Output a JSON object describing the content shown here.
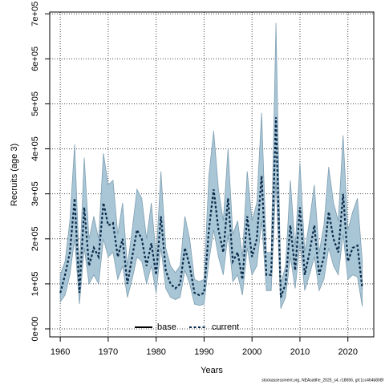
{
  "chart_data": {
    "type": "line_band",
    "xlabel": "Years",
    "ylabel": "Recruits (age 3)",
    "footer": "stockassessment.org, NEAsalthe_2025_s4, r18656, git:1cc464b808f",
    "x": [
      1960,
      1961,
      1962,
      1963,
      1964,
      1965,
      1966,
      1967,
      1968,
      1969,
      1970,
      1971,
      1972,
      1973,
      1974,
      1975,
      1976,
      1977,
      1978,
      1979,
      1980,
      1981,
      1982,
      1983,
      1984,
      1985,
      1986,
      1987,
      1988,
      1989,
      1990,
      1991,
      1992,
      1993,
      1994,
      1995,
      1996,
      1997,
      1998,
      1999,
      2000,
      2001,
      2002,
      2003,
      2004,
      2005,
      2006,
      2007,
      2008,
      2009,
      2010,
      2011,
      2012,
      2013,
      2014,
      2015,
      2016,
      2017,
      2018,
      2019,
      2020,
      2021,
      2022,
      2023
    ],
    "series": [
      {
        "name": "base",
        "color": "#000000",
        "dash": "solid"
      },
      {
        "name": "current",
        "color": "#0a2a4a",
        "dash": "dotted",
        "band_color": "#a9c6d6",
        "band_stroke": "#7f9fb2",
        "values": [
          80000,
          120000,
          170000,
          290000,
          80000,
          270000,
          140000,
          180000,
          160000,
          280000,
          230000,
          235000,
          160000,
          200000,
          100000,
          160000,
          220000,
          200000,
          140000,
          190000,
          120000,
          250000,
          130000,
          100000,
          90000,
          100000,
          180000,
          140000,
          80000,
          75000,
          80000,
          220000,
          310000,
          220000,
          170000,
          290000,
          150000,
          170000,
          110000,
          250000,
          160000,
          200000,
          340000,
          120000,
          120000,
          470000,
          70000,
          100000,
          230000,
          130000,
          270000,
          120000,
          170000,
          230000,
          120000,
          160000,
          260000,
          200000,
          170000,
          300000,
          150000,
          180000,
          185000,
          90000
        ],
        "lower": [
          60000,
          75000,
          120000,
          200000,
          55000,
          180000,
          100000,
          120000,
          100000,
          200000,
          160000,
          170000,
          110000,
          140000,
          70000,
          110000,
          160000,
          150000,
          100000,
          140000,
          80000,
          180000,
          90000,
          70000,
          65000,
          70000,
          130000,
          100000,
          55000,
          52000,
          55000,
          150000,
          220000,
          160000,
          120000,
          210000,
          105000,
          120000,
          75000,
          180000,
          120000,
          140000,
          240000,
          85000,
          85000,
          330000,
          45000,
          70000,
          160000,
          90000,
          190000,
          85000,
          120000,
          160000,
          85000,
          110000,
          180000,
          140000,
          120000,
          210000,
          110000,
          120000,
          115000,
          50000
        ],
        "upper": [
          120000,
          150000,
          240000,
          410000,
          130000,
          380000,
          200000,
          250000,
          200000,
          390000,
          320000,
          330000,
          210000,
          280000,
          140000,
          220000,
          310000,
          290000,
          200000,
          280000,
          160000,
          350000,
          180000,
          140000,
          125000,
          140000,
          250000,
          200000,
          110000,
          105000,
          110000,
          340000,
          440000,
          310000,
          240000,
          400000,
          210000,
          240000,
          160000,
          350000,
          240000,
          280000,
          480000,
          170000,
          170000,
          680000,
          100000,
          140000,
          330000,
          180000,
          370000,
          170000,
          240000,
          320000,
          170000,
          230000,
          360000,
          280000,
          240000,
          430000,
          220000,
          260000,
          290000,
          150000
        ]
      }
    ],
    "xlim": [
      1957.8,
      2025.4
    ],
    "ylim": [
      -17800,
      704000
    ],
    "xticks": [
      1960,
      1970,
      1980,
      1990,
      2000,
      2010,
      2020
    ],
    "yticks": [
      {
        "value": 0,
        "label": "0e+00"
      },
      {
        "value": 100000,
        "label": "1e+05"
      },
      {
        "value": 200000,
        "label": "2e+05"
      },
      {
        "value": 300000,
        "label": "3e+05"
      },
      {
        "value": 400000,
        "label": "4e+05"
      },
      {
        "value": 500000,
        "label": "5e+05"
      },
      {
        "value": 600000,
        "label": "6e+05"
      },
      {
        "value": 700000,
        "label": "7e+05"
      }
    ],
    "grid": true,
    "legend": "bottom"
  }
}
